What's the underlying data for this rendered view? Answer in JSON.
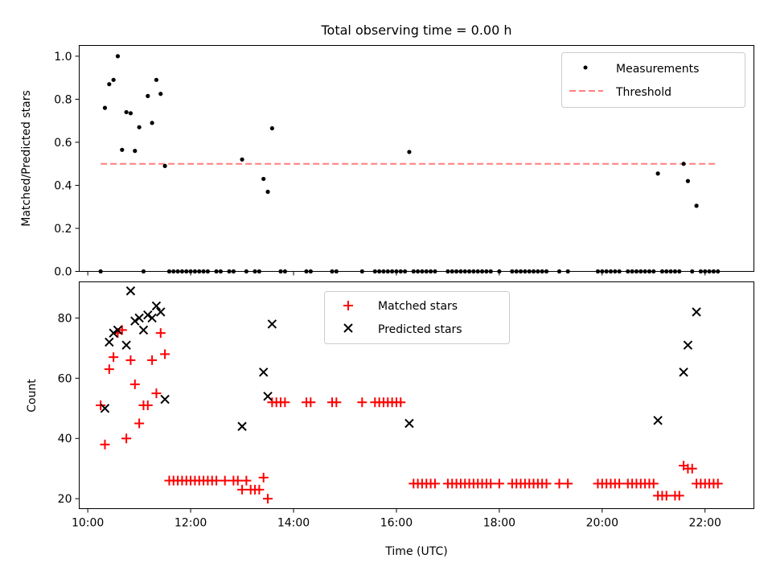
{
  "chart_data": [
    {
      "type": "scatter",
      "title": "Total observing time = 0.00 h",
      "xlabel": "",
      "ylabel": "Matched/Predicted stars",
      "xlim": [
        "09:50",
        "22:57"
      ],
      "ylim": [
        0,
        1.05
      ],
      "yticks": [
        0.0,
        0.2,
        0.4,
        0.6,
        0.8,
        1.0
      ],
      "ytick_labels": [
        "0.0",
        "0.2",
        "0.4",
        "0.6",
        "0.8",
        "1.0"
      ],
      "xticks": [
        "10:00",
        "12:00",
        "14:00",
        "16:00",
        "18:00",
        "20:00",
        "22:00"
      ],
      "grid": false,
      "legend": "top-right",
      "series": [
        {
          "name": "Measurements",
          "kind": "points",
          "color": "#000000",
          "points": [
            [
              "10:15",
              0
            ],
            [
              "10:20",
              0.76
            ],
            [
              "10:25",
              0.87
            ],
            [
              "10:30",
              0.89
            ],
            [
              "10:35",
              1.0
            ],
            [
              "10:40",
              0.565
            ],
            [
              "10:45",
              0.74
            ],
            [
              "10:50",
              0.735
            ],
            [
              "10:55",
              0.56
            ],
            [
              "11:00",
              0.67
            ],
            [
              "11:05",
              0
            ],
            [
              "11:10",
              0.815
            ],
            [
              "11:15",
              0.69
            ],
            [
              "11:20",
              0.89
            ],
            [
              "11:25",
              0.825
            ],
            [
              "11:30",
              0.49
            ],
            [
              "11:35",
              0
            ],
            [
              "11:40",
              0
            ],
            [
              "11:45",
              0
            ],
            [
              "11:50",
              0
            ],
            [
              "11:55",
              0
            ],
            [
              "12:00",
              0
            ],
            [
              "12:05",
              0
            ],
            [
              "12:10",
              0
            ],
            [
              "12:15",
              0
            ],
            [
              "12:20",
              0
            ],
            [
              "12:30",
              0
            ],
            [
              "12:35",
              0
            ],
            [
              "12:45",
              0
            ],
            [
              "12:50",
              0
            ],
            [
              "13:00",
              0.52
            ],
            [
              "13:05",
              0
            ],
            [
              "13:15",
              0
            ],
            [
              "13:20",
              0
            ],
            [
              "13:25",
              0.43
            ],
            [
              "13:30",
              0.37
            ],
            [
              "13:35",
              0.665
            ],
            [
              "13:45",
              0
            ],
            [
              "13:50",
              0
            ],
            [
              "14:15",
              0
            ],
            [
              "14:20",
              0
            ],
            [
              "14:45",
              0
            ],
            [
              "14:50",
              0
            ],
            [
              "15:20",
              0
            ],
            [
              "15:35",
              0
            ],
            [
              "15:40",
              0
            ],
            [
              "15:45",
              0
            ],
            [
              "15:50",
              0
            ],
            [
              "15:55",
              0
            ],
            [
              "16:00",
              0
            ],
            [
              "16:05",
              0
            ],
            [
              "16:10",
              0
            ],
            [
              "16:15",
              0.555
            ],
            [
              "16:20",
              0
            ],
            [
              "16:25",
              0
            ],
            [
              "16:30",
              0
            ],
            [
              "16:35",
              0
            ],
            [
              "16:40",
              0
            ],
            [
              "16:45",
              0
            ],
            [
              "17:00",
              0
            ],
            [
              "17:05",
              0
            ],
            [
              "17:10",
              0
            ],
            [
              "17:15",
              0
            ],
            [
              "17:20",
              0
            ],
            [
              "17:25",
              0
            ],
            [
              "17:30",
              0
            ],
            [
              "17:35",
              0
            ],
            [
              "17:40",
              0
            ],
            [
              "17:45",
              0
            ],
            [
              "17:50",
              0
            ],
            [
              "18:00",
              0
            ],
            [
              "18:15",
              0
            ],
            [
              "18:20",
              0
            ],
            [
              "18:25",
              0
            ],
            [
              "18:30",
              0
            ],
            [
              "18:35",
              0
            ],
            [
              "18:40",
              0
            ],
            [
              "18:45",
              0
            ],
            [
              "18:50",
              0
            ],
            [
              "18:55",
              0
            ],
            [
              "19:10",
              0
            ],
            [
              "19:20",
              0
            ],
            [
              "19:55",
              0
            ],
            [
              "20:00",
              0
            ],
            [
              "20:05",
              0
            ],
            [
              "20:10",
              0
            ],
            [
              "20:15",
              0
            ],
            [
              "20:20",
              0
            ],
            [
              "20:30",
              0
            ],
            [
              "20:35",
              0
            ],
            [
              "20:40",
              0
            ],
            [
              "20:45",
              0
            ],
            [
              "20:50",
              0
            ],
            [
              "20:55",
              0
            ],
            [
              "21:00",
              0
            ],
            [
              "21:05",
              0.455
            ],
            [
              "21:10",
              0
            ],
            [
              "21:15",
              0
            ],
            [
              "21:20",
              0
            ],
            [
              "21:25",
              0
            ],
            [
              "21:30",
              0
            ],
            [
              "21:35",
              0.5
            ],
            [
              "21:40",
              0.42
            ],
            [
              "21:45",
              0
            ],
            [
              "21:50",
              0.305
            ],
            [
              "21:55",
              0
            ],
            [
              "22:00",
              0
            ],
            [
              "22:05",
              0
            ],
            [
              "22:10",
              0
            ],
            [
              "22:15",
              0
            ]
          ]
        },
        {
          "name": "Threshold",
          "kind": "dashed-line",
          "color": "#ff7f7f",
          "points": [
            [
              "10:15",
              0.5
            ],
            [
              "22:15",
              0.5
            ]
          ]
        }
      ]
    },
    {
      "type": "scatter",
      "title": "",
      "xlabel": "Time (UTC)",
      "ylabel": "Count",
      "xlim": [
        "09:50",
        "22:57"
      ],
      "ylim": [
        16.7,
        92
      ],
      "yticks": [
        20,
        40,
        60,
        80
      ],
      "ytick_labels": [
        "20",
        "40",
        "60",
        "80"
      ],
      "xticks": [
        "10:00",
        "12:00",
        "14:00",
        "16:00",
        "18:00",
        "20:00",
        "22:00"
      ],
      "xtick_labels": [
        "10:00",
        "12:00",
        "14:00",
        "16:00",
        "18:00",
        "20:00",
        "22:00"
      ],
      "grid": false,
      "legend": "top-center",
      "series": [
        {
          "name": "Matched stars",
          "kind": "plus",
          "color": "#ff0000",
          "points": [
            [
              "10:15",
              51
            ],
            [
              "10:20",
              38
            ],
            [
              "10:25",
              63
            ],
            [
              "10:30",
              67
            ],
            [
              "10:35",
              75
            ],
            [
              "10:40",
              76
            ],
            [
              "10:45",
              40
            ],
            [
              "10:50",
              66
            ],
            [
              "10:55",
              58
            ],
            [
              "11:00",
              45
            ],
            [
              "11:05",
              51
            ],
            [
              "11:10",
              51
            ],
            [
              "11:15",
              66
            ],
            [
              "11:20",
              55
            ],
            [
              "11:25",
              75
            ],
            [
              "11:30",
              68
            ],
            [
              "11:35",
              26
            ],
            [
              "11:40",
              26
            ],
            [
              "11:45",
              26
            ],
            [
              "11:50",
              26
            ],
            [
              "11:55",
              26
            ],
            [
              "12:00",
              26
            ],
            [
              "12:05",
              26
            ],
            [
              "12:10",
              26
            ],
            [
              "12:15",
              26
            ],
            [
              "12:20",
              26
            ],
            [
              "12:25",
              26
            ],
            [
              "12:30",
              26
            ],
            [
              "12:40",
              26
            ],
            [
              "12:50",
              26
            ],
            [
              "12:55",
              26
            ],
            [
              "13:00",
              23
            ],
            [
              "13:05",
              26
            ],
            [
              "13:10",
              23
            ],
            [
              "13:15",
              23
            ],
            [
              "13:20",
              23
            ],
            [
              "13:25",
              27
            ],
            [
              "13:30",
              20
            ],
            [
              "13:35",
              52
            ],
            [
              "13:40",
              52
            ],
            [
              "13:45",
              52
            ],
            [
              "13:50",
              52
            ],
            [
              "14:15",
              52
            ],
            [
              "14:20",
              52
            ],
            [
              "14:45",
              52
            ],
            [
              "14:50",
              52
            ],
            [
              "15:20",
              52
            ],
            [
              "15:35",
              52
            ],
            [
              "15:40",
              52
            ],
            [
              "15:45",
              52
            ],
            [
              "15:50",
              52
            ],
            [
              "15:55",
              52
            ],
            [
              "16:00",
              52
            ],
            [
              "16:05",
              52
            ],
            [
              "16:20",
              25
            ],
            [
              "16:25",
              25
            ],
            [
              "16:30",
              25
            ],
            [
              "16:35",
              25
            ],
            [
              "16:40",
              25
            ],
            [
              "16:45",
              25
            ],
            [
              "17:00",
              25
            ],
            [
              "17:05",
              25
            ],
            [
              "17:10",
              25
            ],
            [
              "17:15",
              25
            ],
            [
              "17:20",
              25
            ],
            [
              "17:25",
              25
            ],
            [
              "17:30",
              25
            ],
            [
              "17:35",
              25
            ],
            [
              "17:40",
              25
            ],
            [
              "17:45",
              25
            ],
            [
              "17:50",
              25
            ],
            [
              "18:00",
              25
            ],
            [
              "18:15",
              25
            ],
            [
              "18:20",
              25
            ],
            [
              "18:25",
              25
            ],
            [
              "18:30",
              25
            ],
            [
              "18:35",
              25
            ],
            [
              "18:40",
              25
            ],
            [
              "18:45",
              25
            ],
            [
              "18:50",
              25
            ],
            [
              "18:55",
              25
            ],
            [
              "19:10",
              25
            ],
            [
              "19:20",
              25
            ],
            [
              "19:55",
              25
            ],
            [
              "20:00",
              25
            ],
            [
              "20:05",
              25
            ],
            [
              "20:10",
              25
            ],
            [
              "20:15",
              25
            ],
            [
              "20:20",
              25
            ],
            [
              "20:30",
              25
            ],
            [
              "20:35",
              25
            ],
            [
              "20:40",
              25
            ],
            [
              "20:45",
              25
            ],
            [
              "20:50",
              25
            ],
            [
              "20:55",
              25
            ],
            [
              "21:00",
              25
            ],
            [
              "21:05",
              21
            ],
            [
              "21:10",
              21
            ],
            [
              "21:15",
              21
            ],
            [
              "21:25",
              21
            ],
            [
              "21:30",
              21
            ],
            [
              "21:35",
              31
            ],
            [
              "21:40",
              30
            ],
            [
              "21:45",
              30
            ],
            [
              "21:50",
              25
            ],
            [
              "21:55",
              25
            ],
            [
              "22:00",
              25
            ],
            [
              "22:05",
              25
            ],
            [
              "22:10",
              25
            ],
            [
              "22:15",
              25
            ]
          ]
        },
        {
          "name": "Predicted stars",
          "kind": "x",
          "color": "#000000",
          "points": [
            [
              "10:20",
              50
            ],
            [
              "10:25",
              72
            ],
            [
              "10:30",
              75
            ],
            [
              "10:35",
              76
            ],
            [
              "10:45",
              71
            ],
            [
              "10:50",
              89
            ],
            [
              "10:55",
              79
            ],
            [
              "11:00",
              80
            ],
            [
              "11:05",
              76
            ],
            [
              "11:10",
              81
            ],
            [
              "11:15",
              80
            ],
            [
              "11:20",
              84
            ],
            [
              "11:25",
              82
            ],
            [
              "11:30",
              53
            ],
            [
              "13:00",
              44
            ],
            [
              "13:25",
              62
            ],
            [
              "13:30",
              54
            ],
            [
              "13:35",
              78
            ],
            [
              "16:15",
              45
            ],
            [
              "21:05",
              46
            ],
            [
              "21:35",
              62
            ],
            [
              "21:40",
              71
            ],
            [
              "21:50",
              82
            ]
          ]
        }
      ]
    }
  ]
}
